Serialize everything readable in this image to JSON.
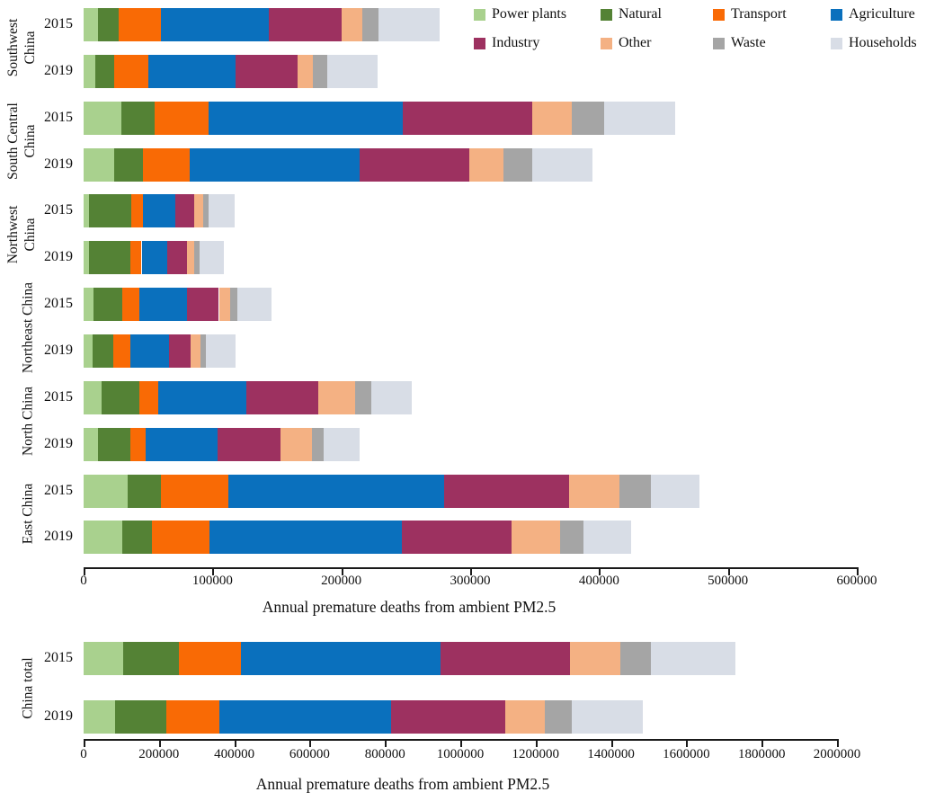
{
  "axis_title": "Annual premature deaths from ambient PM2.5",
  "legend": {
    "items": [
      {
        "label": "Power plants",
        "color": "#a9d18e",
        "row": 0,
        "col": 0
      },
      {
        "label": "Natural",
        "color": "#548235",
        "row": 0,
        "col": 1
      },
      {
        "label": "Transport",
        "color": "#f96a05",
        "row": 0,
        "col": 2
      },
      {
        "label": "Agriculture",
        "color": "#0a70bd",
        "row": 0,
        "col": 3
      },
      {
        "label": "Industry",
        "color": "#9d3160",
        "row": 1,
        "col": 0
      },
      {
        "label": "Other",
        "color": "#f4b183",
        "row": 1,
        "col": 1
      },
      {
        "label": "Waste",
        "color": "#a5a5a5",
        "row": 1,
        "col": 2
      },
      {
        "label": "Households",
        "color": "#d8dde6",
        "row": 1,
        "col": 3
      }
    ]
  },
  "chart_data": [
    {
      "type": "bar",
      "orientation": "horizontal",
      "stacked": true,
      "xlabel": "Annual premature deaths from ambient PM2.5",
      "xlim": [
        0,
        600000
      ],
      "xtick_step": 100000,
      "grid": false,
      "legend_position": "top-right",
      "sectors": [
        "Power plants",
        "Natural",
        "Transport",
        "Agriculture",
        "Industry",
        "Other",
        "Waste",
        "Households"
      ],
      "colors": [
        "#a9d18e",
        "#548235",
        "#f96a05",
        "#0a70bd",
        "#9d3160",
        "#f4b183",
        "#a5a5a5",
        "#d8dde6"
      ],
      "groups": [
        {
          "label": "Southwest China",
          "label_lines": [
            "Southwest",
            "China"
          ],
          "bars": [
            {
              "year": "2015",
              "values": [
                11000,
                16000,
                33000,
                84000,
                56000,
                16000,
                13000,
                47000
              ]
            },
            {
              "year": "2019",
              "values": [
                9000,
                15000,
                26000,
                68000,
                48000,
                12000,
                11000,
                39000
              ]
            }
          ]
        },
        {
          "label": "South Central China",
          "label_lines": [
            "South Central",
            "China"
          ],
          "bars": [
            {
              "year": "2015",
              "values": [
                29000,
                26000,
                42000,
                151000,
                100000,
                31000,
                25000,
                55000
              ]
            },
            {
              "year": "2019",
              "values": [
                24000,
                22000,
                36000,
                132000,
                85000,
                27000,
                22000,
                47000
              ]
            }
          ]
        },
        {
          "label": "Northwest China",
          "label_lines": [
            "Northwest",
            "China"
          ],
          "bars": [
            {
              "year": "2015",
              "values": [
                4000,
                33000,
                9000,
                25000,
                15000,
                7000,
                4000,
                20000
              ]
            },
            {
              "year": "2019",
              "values": [
                4000,
                32000,
                9000,
                20000,
                15000,
                6000,
                4000,
                19000
              ]
            }
          ]
        },
        {
          "label": "Northeast China",
          "label_lines": [
            "Northeast China"
          ],
          "bars": [
            {
              "year": "2015",
              "values": [
                8000,
                22000,
                13000,
                37000,
                25000,
                9000,
                5000,
                27000
              ]
            },
            {
              "year": "2019",
              "values": [
                7000,
                16000,
                13000,
                30000,
                17000,
                8000,
                4000,
                23000
              ]
            }
          ]
        },
        {
          "label": "North China",
          "label_lines": [
            "North China"
          ],
          "bars": [
            {
              "year": "2015",
              "values": [
                14000,
                29000,
                15000,
                68000,
                56000,
                29000,
                12000,
                32000
              ]
            },
            {
              "year": "2019",
              "values": [
                11000,
                25000,
                12000,
                56000,
                49000,
                24000,
                9000,
                28000
              ]
            }
          ]
        },
        {
          "label": "East China",
          "label_lines": [
            "East China"
          ],
          "bars": [
            {
              "year": "2015",
              "values": [
                34000,
                26000,
                52000,
                168000,
                97000,
                39000,
                24000,
                38000
              ]
            },
            {
              "year": "2019",
              "values": [
                30000,
                23000,
                45000,
                149000,
                85000,
                38000,
                18000,
                37000
              ]
            }
          ]
        }
      ]
    },
    {
      "type": "bar",
      "orientation": "horizontal",
      "stacked": true,
      "xlabel": "Annual premature deaths from ambient PM2.5",
      "xlim": [
        0,
        2000000
      ],
      "xtick_step": 200000,
      "grid": false,
      "sectors": [
        "Power plants",
        "Natural",
        "Transport",
        "Agriculture",
        "Industry",
        "Other",
        "Waste",
        "Households"
      ],
      "colors": [
        "#a9d18e",
        "#548235",
        "#f96a05",
        "#0a70bd",
        "#9d3160",
        "#f4b183",
        "#a5a5a5",
        "#d8dde6"
      ],
      "groups": [
        {
          "label": "China total",
          "label_lines": [
            "China total"
          ],
          "bars": [
            {
              "year": "2015",
              "values": [
                104000,
                149000,
                165000,
                530000,
                344000,
                134000,
                80000,
                224000
              ]
            },
            {
              "year": "2019",
              "values": [
                84000,
                135000,
                141000,
                457000,
                302000,
                105000,
                72000,
                188000
              ]
            }
          ]
        }
      ]
    }
  ]
}
